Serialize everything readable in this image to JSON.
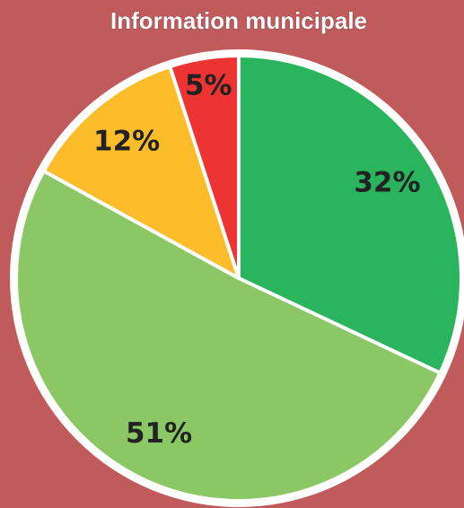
{
  "chart_data": {
    "type": "pie",
    "title": "Information municipale",
    "values": [
      32,
      51,
      12,
      5
    ],
    "value_labels": [
      "32%",
      "51%",
      "12%",
      "5%"
    ],
    "colors": [
      "#2ab45e",
      "#8bc865",
      "#fdbd2a",
      "#ee3333"
    ]
  }
}
